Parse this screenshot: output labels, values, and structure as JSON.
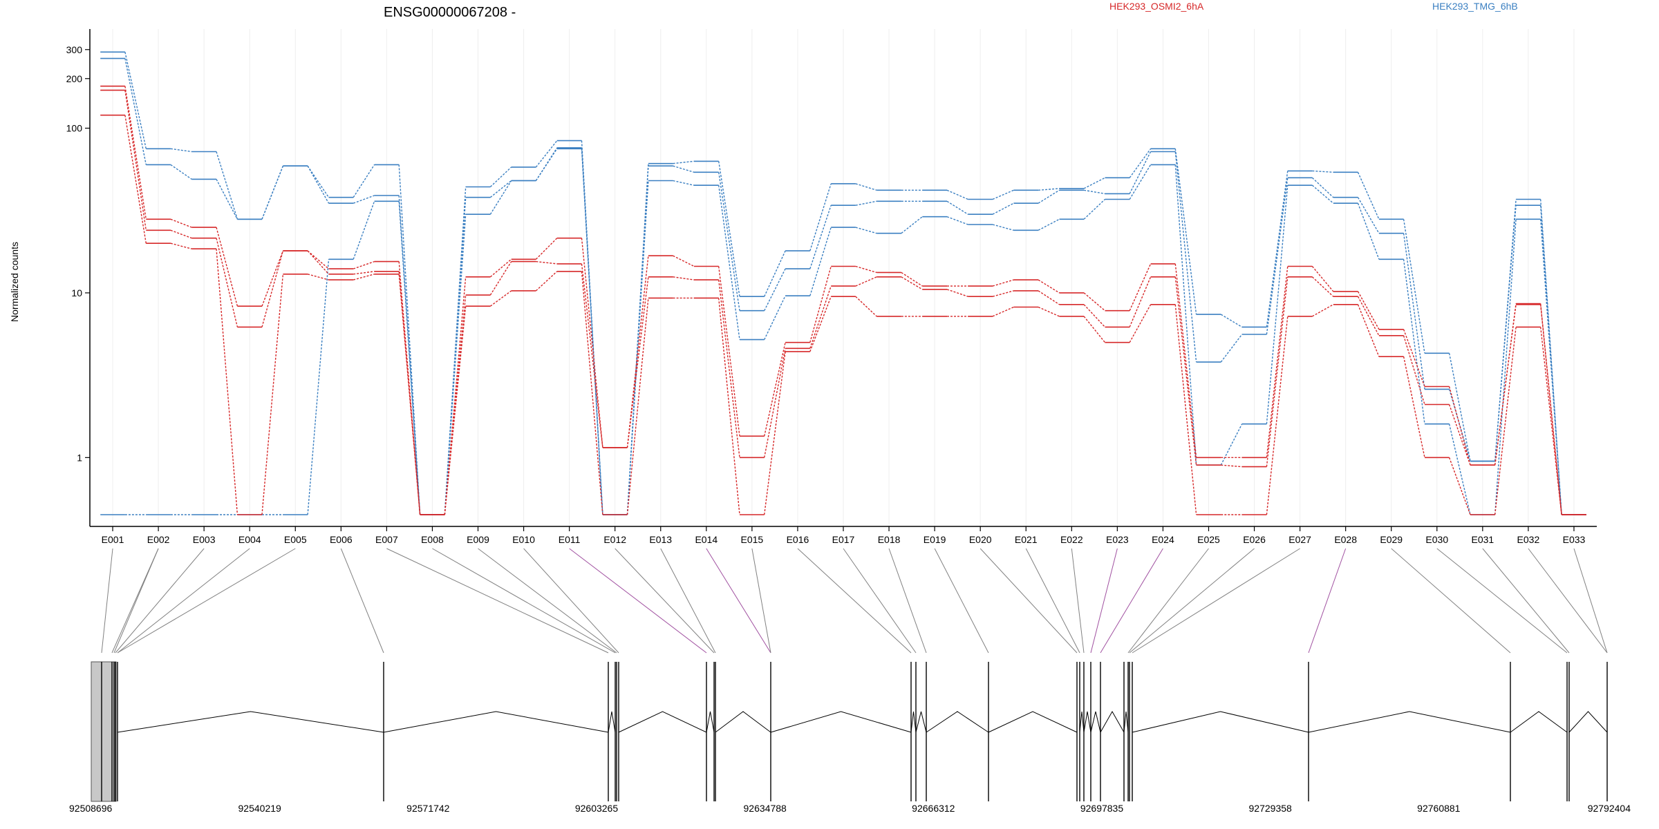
{
  "chart_data": {
    "type": "line",
    "title": "ENSG00000067208 -",
    "ylabel": "Normalized counts",
    "yscale": "log",
    "ylim": [
      0.45,
      400
    ],
    "yticks": [
      1,
      10,
      100,
      200,
      300
    ],
    "yticklabels": [
      "1",
      "10",
      "100",
      "200",
      "300"
    ],
    "colors": {
      "HEK293_OSMI2_6hA": "#d62728",
      "HEK293_TMG_6hB": "#3a7fc1",
      "exon": "#c8c8c8",
      "link": "#808080",
      "link_highlight": "#a050a0"
    },
    "legend": [
      {
        "label": "HEK293_OSMI2_6hA",
        "color": "#d62728"
      },
      {
        "label": "HEK293_TMG_6hB",
        "color": "#3a7fc1"
      }
    ],
    "categories": [
      "E001",
      "E002",
      "E003",
      "E004",
      "E005",
      "E006",
      "E007",
      "E008",
      "E009",
      "E010",
      "E011",
      "E012",
      "E013",
      "E014",
      "E015",
      "E016",
      "E017",
      "E018",
      "E019",
      "E020",
      "E021",
      "E022",
      "E023",
      "E024",
      "E025",
      "E026",
      "E027",
      "E028",
      "E029",
      "E030",
      "E031",
      "E032",
      "E033"
    ],
    "series": [
      {
        "group": "HEK293_TMG_6hB",
        "values": [
          290,
          75,
          72,
          28,
          59,
          38,
          60,
          0.45,
          44,
          58,
          84,
          0.45,
          61,
          63,
          9.5,
          18,
          46,
          42,
          42,
          37,
          42,
          43,
          50,
          75,
          7.4,
          6.2,
          55,
          54,
          28,
          4.3,
          0.95,
          37,
          0.45
        ]
      },
      {
        "group": "HEK293_TMG_6hB",
        "values": [
          265,
          60,
          49,
          28,
          59,
          35,
          39,
          0.45,
          38,
          48,
          76,
          0.45,
          59,
          54,
          7.8,
          14,
          34,
          36,
          36,
          30,
          35,
          42,
          40,
          72,
          3.8,
          5.6,
          50,
          38,
          23,
          2.6,
          0.95,
          34,
          0.45
        ]
      },
      {
        "group": "HEK293_TMG_6hB",
        "values": [
          0.45,
          0.45,
          0.45,
          0.45,
          0.45,
          16,
          36,
          0.45,
          30,
          48,
          75,
          0.45,
          48,
          45,
          5.2,
          9.6,
          25,
          23,
          29,
          26,
          24,
          28,
          37,
          60,
          0.9,
          1.6,
          45,
          35,
          16,
          1.6,
          0.45,
          28,
          0.45
        ]
      },
      {
        "group": "HEK293_OSMI2_6hA",
        "values": [
          180,
          28,
          25,
          8.3,
          18,
          14,
          15.5,
          0.45,
          12.5,
          16,
          21.5,
          1.15,
          16.8,
          14.5,
          1.35,
          5.0,
          14.5,
          13.3,
          11,
          11,
          12,
          10,
          7.8,
          15,
          1.0,
          1.0,
          14.5,
          10.2,
          6,
          2.7,
          0.9,
          8.6,
          0.45
        ]
      },
      {
        "group": "HEK293_OSMI2_6hA",
        "values": [
          170,
          24,
          21.5,
          6.2,
          18,
          13,
          13.5,
          0.45,
          9.7,
          15.5,
          15,
          1.15,
          12.5,
          12,
          1.0,
          4.6,
          11,
          12.5,
          10.5,
          9.5,
          10.3,
          8.5,
          6.2,
          12.5,
          0.9,
          0.88,
          12.5,
          9.5,
          5.5,
          2.1,
          0.9,
          8.5,
          0.45
        ]
      },
      {
        "group": "HEK293_OSMI2_6hA",
        "values": [
          120,
          20,
          18.5,
          0.45,
          13,
          12,
          13,
          0.45,
          8.3,
          10.3,
          13.5,
          0.45,
          9.3,
          9.3,
          0.45,
          4.4,
          9.5,
          7.2,
          7.2,
          7.2,
          8.2,
          7.2,
          5.0,
          8.5,
          0.45,
          0.45,
          7.2,
          8.5,
          4.1,
          1.0,
          0.45,
          6.2,
          0.45
        ]
      }
    ],
    "genomic": {
      "tick_labels": [
        "92508696",
        "92540219",
        "92571742",
        "92603265",
        "92634788",
        "92666312",
        "92697835",
        "92729358",
        "92760881",
        "92792404"
      ],
      "range": [
        92508696,
        92792404
      ]
    }
  }
}
